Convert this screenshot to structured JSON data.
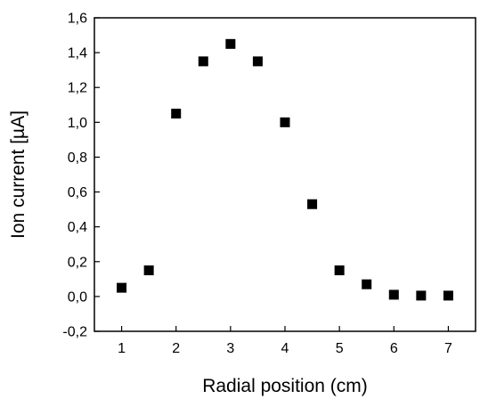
{
  "chart_data": {
    "type": "scatter",
    "title": "",
    "xlabel": "Radial position (cm)",
    "ylabel": "Ion current  [µA]",
    "xlim": [
      0.5,
      7.5
    ],
    "ylim": [
      -0.2,
      1.6
    ],
    "xticks": [
      1,
      2,
      3,
      4,
      5,
      6,
      7
    ],
    "xtick_labels": [
      "1",
      "2",
      "3",
      "4",
      "5",
      "6",
      "7"
    ],
    "yticks": [
      -0.2,
      0.0,
      0.2,
      0.4,
      0.6,
      0.8,
      1.0,
      1.2,
      1.4,
      1.6
    ],
    "ytick_labels": [
      "-0,2",
      "0,0",
      "0,2",
      "0,4",
      "0,6",
      "0,8",
      "1,0",
      "1,2",
      "1,4",
      "1,6"
    ],
    "grid": false,
    "marker": "square",
    "marker_color": "#000000",
    "series": [
      {
        "x": [
          1.0,
          1.5,
          2.0,
          2.5,
          3.0,
          3.5,
          4.0,
          4.5,
          5.0,
          5.5,
          6.0,
          6.5,
          7.0
        ],
        "y": [
          0.05,
          0.15,
          1.05,
          1.35,
          1.45,
          1.35,
          1.0,
          0.53,
          0.15,
          0.07,
          0.01,
          0.005,
          0.005
        ]
      }
    ]
  }
}
